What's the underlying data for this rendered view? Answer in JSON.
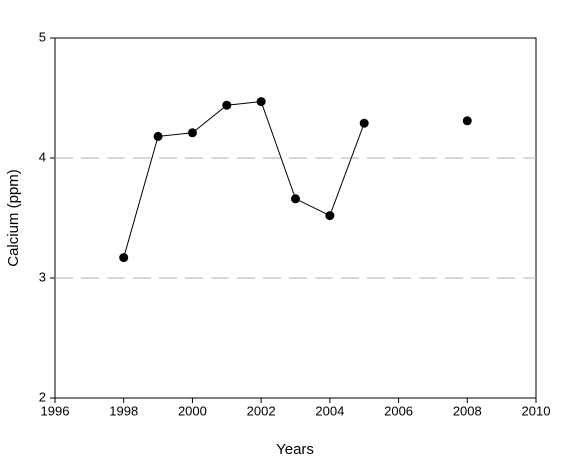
{
  "chart_data": {
    "type": "line",
    "x_label": "Years",
    "y_label": "Calcium (ppm)",
    "x": [
      1998,
      1999,
      2000,
      2001,
      2002,
      2003,
      2004,
      2005,
      2006,
      2007,
      2008
    ],
    "series": [
      {
        "color": "#000000",
        "values": [
          3.17,
          4.18,
          4.21,
          4.44,
          4.47,
          3.66,
          3.52,
          4.29,
          null,
          null,
          4.31
        ]
      }
    ],
    "xlim": [
      1996,
      2010
    ],
    "xticks": [
      1996,
      1998,
      2000,
      2002,
      2004,
      2006,
      2008,
      2010
    ],
    "ylim": [
      2,
      5
    ],
    "yticks": [
      2,
      3,
      4,
      5
    ],
    "grid": true
  }
}
